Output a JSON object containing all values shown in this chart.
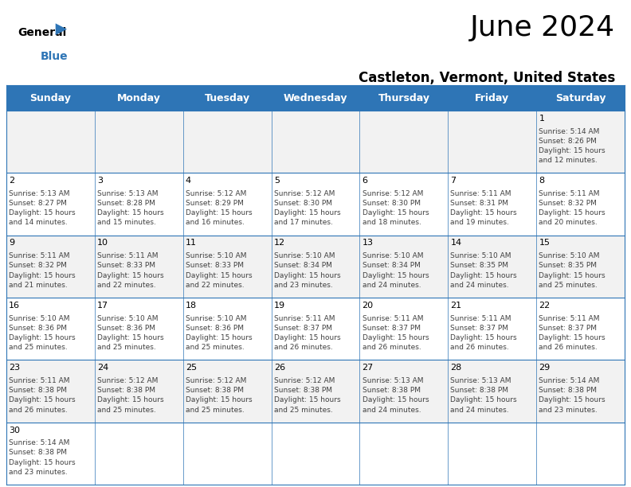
{
  "title": "June 2024",
  "subtitle": "Castleton, Vermont, United States",
  "header_bg": "#2E75B6",
  "header_text_color": "#FFFFFF",
  "days_of_week": [
    "Sunday",
    "Monday",
    "Tuesday",
    "Wednesday",
    "Thursday",
    "Friday",
    "Saturday"
  ],
  "row_colors": [
    "#F2F2F2",
    "#FFFFFF"
  ],
  "cell_border_color": "#2E75B6",
  "number_color": "#000000",
  "text_color": "#404040",
  "title_color": "#000000",
  "subtitle_color": "#000000",
  "calendar": [
    [
      null,
      null,
      null,
      null,
      null,
      null,
      {
        "day": "1",
        "sunrise": "5:14 AM",
        "sunset": "8:26 PM",
        "daylight": "15 hours",
        "daylight2": "and 12 minutes."
      }
    ],
    [
      {
        "day": "2",
        "sunrise": "5:13 AM",
        "sunset": "8:27 PM",
        "daylight": "15 hours",
        "daylight2": "and 14 minutes."
      },
      {
        "day": "3",
        "sunrise": "5:13 AM",
        "sunset": "8:28 PM",
        "daylight": "15 hours",
        "daylight2": "and 15 minutes."
      },
      {
        "day": "4",
        "sunrise": "5:12 AM",
        "sunset": "8:29 PM",
        "daylight": "15 hours",
        "daylight2": "and 16 minutes."
      },
      {
        "day": "5",
        "sunrise": "5:12 AM",
        "sunset": "8:30 PM",
        "daylight": "15 hours",
        "daylight2": "and 17 minutes."
      },
      {
        "day": "6",
        "sunrise": "5:12 AM",
        "sunset": "8:30 PM",
        "daylight": "15 hours",
        "daylight2": "and 18 minutes."
      },
      {
        "day": "7",
        "sunrise": "5:11 AM",
        "sunset": "8:31 PM",
        "daylight": "15 hours",
        "daylight2": "and 19 minutes."
      },
      {
        "day": "8",
        "sunrise": "5:11 AM",
        "sunset": "8:32 PM",
        "daylight": "15 hours",
        "daylight2": "and 20 minutes."
      }
    ],
    [
      {
        "day": "9",
        "sunrise": "5:11 AM",
        "sunset": "8:32 PM",
        "daylight": "15 hours",
        "daylight2": "and 21 minutes."
      },
      {
        "day": "10",
        "sunrise": "5:11 AM",
        "sunset": "8:33 PM",
        "daylight": "15 hours",
        "daylight2": "and 22 minutes."
      },
      {
        "day": "11",
        "sunrise": "5:10 AM",
        "sunset": "8:33 PM",
        "daylight": "15 hours",
        "daylight2": "and 22 minutes."
      },
      {
        "day": "12",
        "sunrise": "5:10 AM",
        "sunset": "8:34 PM",
        "daylight": "15 hours",
        "daylight2": "and 23 minutes."
      },
      {
        "day": "13",
        "sunrise": "5:10 AM",
        "sunset": "8:34 PM",
        "daylight": "15 hours",
        "daylight2": "and 24 minutes."
      },
      {
        "day": "14",
        "sunrise": "5:10 AM",
        "sunset": "8:35 PM",
        "daylight": "15 hours",
        "daylight2": "and 24 minutes."
      },
      {
        "day": "15",
        "sunrise": "5:10 AM",
        "sunset": "8:35 PM",
        "daylight": "15 hours",
        "daylight2": "and 25 minutes."
      }
    ],
    [
      {
        "day": "16",
        "sunrise": "5:10 AM",
        "sunset": "8:36 PM",
        "daylight": "15 hours",
        "daylight2": "and 25 minutes."
      },
      {
        "day": "17",
        "sunrise": "5:10 AM",
        "sunset": "8:36 PM",
        "daylight": "15 hours",
        "daylight2": "and 25 minutes."
      },
      {
        "day": "18",
        "sunrise": "5:10 AM",
        "sunset": "8:36 PM",
        "daylight": "15 hours",
        "daylight2": "and 25 minutes."
      },
      {
        "day": "19",
        "sunrise": "5:11 AM",
        "sunset": "8:37 PM",
        "daylight": "15 hours",
        "daylight2": "and 26 minutes."
      },
      {
        "day": "20",
        "sunrise": "5:11 AM",
        "sunset": "8:37 PM",
        "daylight": "15 hours",
        "daylight2": "and 26 minutes."
      },
      {
        "day": "21",
        "sunrise": "5:11 AM",
        "sunset": "8:37 PM",
        "daylight": "15 hours",
        "daylight2": "and 26 minutes."
      },
      {
        "day": "22",
        "sunrise": "5:11 AM",
        "sunset": "8:37 PM",
        "daylight": "15 hours",
        "daylight2": "and 26 minutes."
      }
    ],
    [
      {
        "day": "23",
        "sunrise": "5:11 AM",
        "sunset": "8:38 PM",
        "daylight": "15 hours",
        "daylight2": "and 26 minutes."
      },
      {
        "day": "24",
        "sunrise": "5:12 AM",
        "sunset": "8:38 PM",
        "daylight": "15 hours",
        "daylight2": "and 25 minutes."
      },
      {
        "day": "25",
        "sunrise": "5:12 AM",
        "sunset": "8:38 PM",
        "daylight": "15 hours",
        "daylight2": "and 25 minutes."
      },
      {
        "day": "26",
        "sunrise": "5:12 AM",
        "sunset": "8:38 PM",
        "daylight": "15 hours",
        "daylight2": "and 25 minutes."
      },
      {
        "day": "27",
        "sunrise": "5:13 AM",
        "sunset": "8:38 PM",
        "daylight": "15 hours",
        "daylight2": "and 24 minutes."
      },
      {
        "day": "28",
        "sunrise": "5:13 AM",
        "sunset": "8:38 PM",
        "daylight": "15 hours",
        "daylight2": "and 24 minutes."
      },
      {
        "day": "29",
        "sunrise": "5:14 AM",
        "sunset": "8:38 PM",
        "daylight": "15 hours",
        "daylight2": "and 23 minutes."
      }
    ],
    [
      {
        "day": "30",
        "sunrise": "5:14 AM",
        "sunset": "8:38 PM",
        "daylight": "15 hours",
        "daylight2": "and 23 minutes."
      },
      null,
      null,
      null,
      null,
      null,
      null
    ]
  ],
  "figsize": [
    7.92,
    6.12
  ],
  "dpi": 100,
  "title_fontsize": 26,
  "subtitle_fontsize": 12,
  "header_fontsize": 9,
  "day_num_fontsize": 8,
  "cell_text_fontsize": 6.5
}
